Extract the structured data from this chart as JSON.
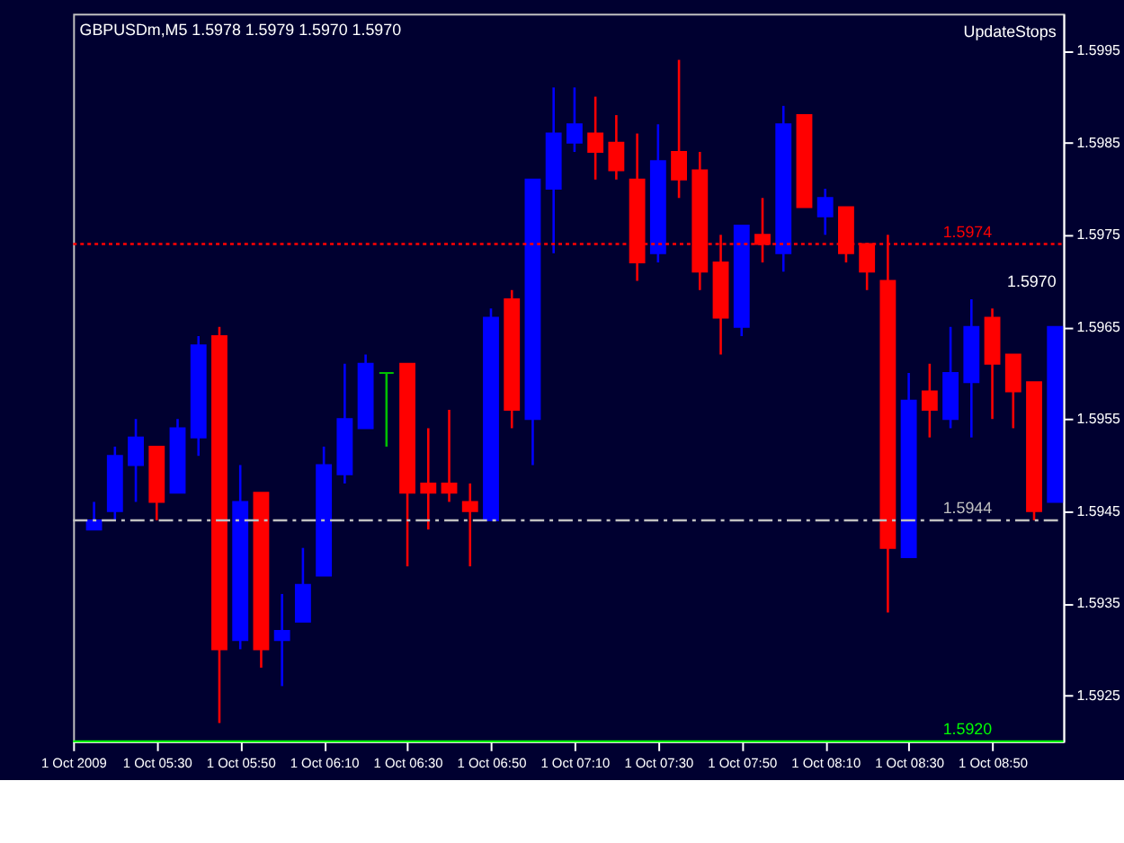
{
  "chart_data": {
    "type": "candlestick",
    "title": "GBPUSDm,M5  1.5978 1.5979 1.5970 1.5970",
    "x": [
      "2009-10-01T05:15",
      "2009-10-01T05:20",
      "2009-10-01T05:25",
      "2009-10-01T05:30",
      "2009-10-01T05:35",
      "2009-10-01T05:40",
      "2009-10-01T05:45",
      "2009-10-01T05:50",
      "2009-10-01T05:55",
      "2009-10-01T06:00",
      "2009-10-01T06:05",
      "2009-10-01T06:10",
      "2009-10-01T06:15",
      "2009-10-01T06:20",
      "2009-10-01T06:25",
      "2009-10-01T06:30",
      "2009-10-01T06:35",
      "2009-10-01T06:40",
      "2009-10-01T06:45",
      "2009-10-01T06:50",
      "2009-10-01T06:55",
      "2009-10-01T07:00",
      "2009-10-01T07:05",
      "2009-10-01T07:10",
      "2009-10-01T07:15",
      "2009-10-01T07:20",
      "2009-10-01T07:25",
      "2009-10-01T07:30",
      "2009-10-01T07:35",
      "2009-10-01T07:40",
      "2009-10-01T07:45",
      "2009-10-01T07:50",
      "2009-10-01T07:55",
      "2009-10-01T08:00",
      "2009-10-01T08:05",
      "2009-10-01T08:10",
      "2009-10-01T08:15",
      "2009-10-01T08:20",
      "2009-10-01T08:25",
      "2009-10-01T08:30",
      "2009-10-01T08:35",
      "2009-10-01T08:40",
      "2009-10-01T08:45",
      "2009-10-01T08:50",
      "2009-10-01T08:55",
      "2009-10-01T09:00",
      "2009-10-01T09:05"
    ],
    "ohlc": [
      [
        1.5943,
        1.5946,
        1.5943,
        1.5944
      ],
      [
        1.5945,
        1.5952,
        1.5944,
        1.5951
      ],
      [
        1.595,
        1.5955,
        1.5946,
        1.5953
      ],
      [
        1.5952,
        1.5952,
        1.5944,
        1.5946
      ],
      [
        1.5947,
        1.5955,
        1.5947,
        1.5954
      ],
      [
        1.5953,
        1.5964,
        1.5951,
        1.5963
      ],
      [
        1.5964,
        1.5965,
        1.5922,
        1.593
      ],
      [
        1.5931,
        1.595,
        1.593,
        1.5946
      ],
      [
        1.5947,
        1.5947,
        1.5928,
        1.593
      ],
      [
        1.5931,
        1.5936,
        1.5926,
        1.5932
      ],
      [
        1.5933,
        1.5941,
        1.5933,
        1.5937
      ],
      [
        1.5938,
        1.5952,
        1.5938,
        1.595
      ],
      [
        1.5949,
        1.5961,
        1.5948,
        1.5955
      ],
      [
        1.5954,
        1.5962,
        1.5954,
        1.5961
      ],
      [
        1.596,
        1.596,
        1.5952,
        1.596
      ],
      [
        1.5961,
        1.5961,
        1.5939,
        1.5947
      ],
      [
        1.5948,
        1.5954,
        1.5943,
        1.5947
      ],
      [
        1.5948,
        1.5956,
        1.5946,
        1.5947
      ],
      [
        1.5946,
        1.5948,
        1.5939,
        1.5945
      ],
      [
        1.5944,
        1.5967,
        1.5944,
        1.5966
      ],
      [
        1.5968,
        1.5969,
        1.5954,
        1.5956
      ],
      [
        1.5955,
        1.5981,
        1.595,
        1.5981
      ],
      [
        1.598,
        1.5991,
        1.5973,
        1.5986
      ],
      [
        1.5985,
        1.5991,
        1.5984,
        1.5987
      ],
      [
        1.5986,
        1.599,
        1.5981,
        1.5984
      ],
      [
        1.5985,
        1.5988,
        1.5981,
        1.5982
      ],
      [
        1.5981,
        1.5986,
        1.597,
        1.5972
      ],
      [
        1.5973,
        1.5987,
        1.5972,
        1.5983
      ],
      [
        1.5984,
        1.5994,
        1.5979,
        1.5981
      ],
      [
        1.5982,
        1.5984,
        1.5969,
        1.5971
      ],
      [
        1.5972,
        1.5975,
        1.5962,
        1.5966
      ],
      [
        1.5965,
        1.5976,
        1.5964,
        1.5976
      ],
      [
        1.5975,
        1.5979,
        1.5972,
        1.5974
      ],
      [
        1.5973,
        1.5989,
        1.5971,
        1.5987
      ],
      [
        1.5988,
        1.5988,
        1.5978,
        1.5978
      ],
      [
        1.5977,
        1.598,
        1.5975,
        1.5979
      ],
      [
        1.5978,
        1.5978,
        1.5972,
        1.5973
      ],
      [
        1.5974,
        1.5974,
        1.5969,
        1.5971
      ],
      [
        1.597,
        1.5975,
        1.5934,
        1.5941
      ],
      [
        1.594,
        1.596,
        1.594,
        1.5957
      ],
      [
        1.5958,
        1.5961,
        1.5953,
        1.5956
      ],
      [
        1.5955,
        1.5965,
        1.5954,
        1.596
      ],
      [
        1.5959,
        1.5968,
        1.5953,
        1.5965
      ],
      [
        1.5966,
        1.5967,
        1.5955,
        1.5961
      ],
      [
        1.5962,
        1.5962,
        1.5954,
        1.5958
      ],
      [
        1.5959,
        1.5959,
        1.5944,
        1.5945
      ],
      [
        1.5946,
        1.5965,
        1.5946,
        1.5965
      ]
    ],
    "colors": [
      "#0000ff",
      "#0000ff",
      "#0000ff",
      "#ff0000",
      "#0000ff",
      "#0000ff",
      "#ff0000",
      "#0000ff",
      "#ff0000",
      "#0000ff",
      "#0000ff",
      "#0000ff",
      "#0000ff",
      "#0000ff",
      "#00c000",
      "#ff0000",
      "#ff0000",
      "#ff0000",
      "#ff0000",
      "#0000ff",
      "#ff0000",
      "#0000ff",
      "#0000ff",
      "#0000ff",
      "#ff0000",
      "#ff0000",
      "#ff0000",
      "#0000ff",
      "#ff0000",
      "#ff0000",
      "#ff0000",
      "#0000ff",
      "#ff0000",
      "#0000ff",
      "#ff0000",
      "#0000ff",
      "#ff0000",
      "#ff0000",
      "#ff0000",
      "#0000ff",
      "#ff0000",
      "#0000ff",
      "#0000ff",
      "#ff0000",
      "#ff0000",
      "#ff0000",
      "#0000ff"
    ],
    "xlim": [
      "2009-10-01T05:10",
      "2009-10-01T09:07"
    ],
    "xticks": [
      {
        "value": "2009-10-01T05:10",
        "label": "1 Oct 2009"
      },
      {
        "value": "2009-10-01T05:30",
        "label": "1 Oct 05:30"
      },
      {
        "value": "2009-10-01T05:50",
        "label": "1 Oct 05:50"
      },
      {
        "value": "2009-10-01T06:10",
        "label": "1 Oct 06:10"
      },
      {
        "value": "2009-10-01T06:30",
        "label": "1 Oct 06:30"
      },
      {
        "value": "2009-10-01T06:50",
        "label": "1 Oct 06:50"
      },
      {
        "value": "2009-10-01T07:10",
        "label": "1 Oct 07:10"
      },
      {
        "value": "2009-10-01T07:30",
        "label": "1 Oct 07:30"
      },
      {
        "value": "2009-10-01T07:50",
        "label": "1 Oct 07:50"
      },
      {
        "value": "2009-10-01T08:10",
        "label": "1 Oct 08:10"
      },
      {
        "value": "2009-10-01T08:30",
        "label": "1 Oct 08:30"
      },
      {
        "value": "2009-10-01T08:50",
        "label": "1 Oct 08:50"
      }
    ],
    "ylim": [
      1.592,
      1.5999
    ],
    "yticks": [
      1.5925,
      1.5935,
      1.5945,
      1.5955,
      1.5965,
      1.5975,
      1.5985,
      1.5995
    ],
    "ref_lines": [
      {
        "axis": "y",
        "value": 1.5974,
        "label": "1.5974",
        "color": "#ff0000",
        "line_style": "dotted"
      },
      {
        "axis": "y",
        "value": 1.5944,
        "label": "1.5944",
        "color": "#c0c0c0",
        "line_style": "dashed"
      },
      {
        "axis": "y",
        "value": 1.592,
        "label": "1.5920",
        "color": "#00ff00",
        "line_style": "solid"
      }
    ],
    "annotations": [
      "UpdateStops",
      "1.5970"
    ],
    "grid": false
  }
}
